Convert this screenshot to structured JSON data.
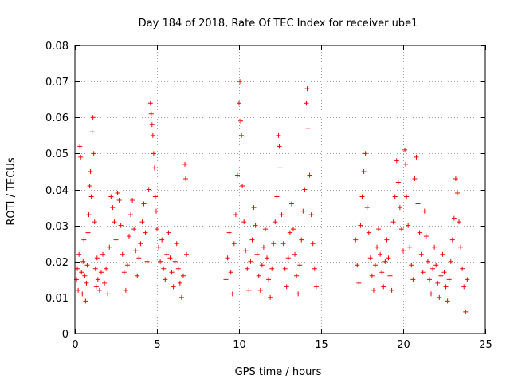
{
  "chart_data": {
    "type": "scatter",
    "title": "Day 184 of 2018, Rate Of TEC Index for receiver ube1",
    "xlabel": "GPS time / hours",
    "ylabel": "ROTI / TECUs",
    "xlim": [
      0,
      25
    ],
    "ylim": [
      0,
      0.08
    ],
    "xticks": [
      0,
      5,
      10,
      15,
      20,
      25
    ],
    "yticks": [
      0,
      0.01,
      0.02,
      0.03,
      0.04,
      0.05,
      0.06,
      0.07,
      0.08
    ],
    "xtick_labels": [
      "0",
      "5",
      "10",
      "15",
      "20",
      "25"
    ],
    "ytick_labels": [
      "0",
      "0.01",
      "0.02",
      "0.03",
      "0.04",
      "0.05",
      "0.06",
      "0.07",
      "0.08"
    ],
    "grid": true,
    "legend": "none",
    "marker": "plus",
    "color": "#ff0000",
    "series": [
      {
        "points": [
          [
            0.1,
            0.015
          ],
          [
            0.15,
            0.018
          ],
          [
            0.2,
            0.012
          ],
          [
            0.25,
            0.022
          ],
          [
            0.3,
            0.052
          ],
          [
            0.35,
            0.049
          ],
          [
            0.4,
            0.017
          ],
          [
            0.45,
            0.011
          ],
          [
            0.5,
            0.02
          ],
          [
            0.55,
            0.026
          ],
          [
            0.6,
            0.016
          ],
          [
            0.65,
            0.009
          ],
          [
            0.7,
            0.014
          ],
          [
            0.75,
            0.019
          ],
          [
            0.8,
            0.028
          ],
          [
            0.85,
            0.033
          ],
          [
            0.9,
            0.041
          ],
          [
            0.95,
            0.045
          ],
          [
            1.0,
            0.038
          ],
          [
            1.05,
            0.056
          ],
          [
            1.1,
            0.06
          ],
          [
            1.15,
            0.05
          ],
          [
            1.2,
            0.031
          ],
          [
            1.25,
            0.018
          ],
          [
            1.3,
            0.013
          ],
          [
            1.35,
            0.021
          ],
          [
            1.4,
            0.015
          ],
          [
            1.5,
            0.012
          ],
          [
            1.6,
            0.017
          ],
          [
            1.7,
            0.022
          ],
          [
            1.8,
            0.014
          ],
          [
            1.9,
            0.018
          ],
          [
            2.0,
            0.011
          ],
          [
            2.1,
            0.024
          ],
          [
            2.2,
            0.038
          ],
          [
            2.3,
            0.035
          ],
          [
            2.4,
            0.031
          ],
          [
            2.5,
            0.026
          ],
          [
            2.6,
            0.039
          ],
          [
            2.7,
            0.037
          ],
          [
            2.8,
            0.03
          ],
          [
            2.9,
            0.022
          ],
          [
            3.0,
            0.017
          ],
          [
            3.1,
            0.012
          ],
          [
            3.2,
            0.019
          ],
          [
            3.3,
            0.027
          ],
          [
            3.4,
            0.033
          ],
          [
            3.5,
            0.037
          ],
          [
            3.6,
            0.029
          ],
          [
            3.7,
            0.023
          ],
          [
            3.8,
            0.016
          ],
          [
            3.9,
            0.021
          ],
          [
            4.0,
            0.025
          ],
          [
            4.1,
            0.031
          ],
          [
            4.2,
            0.036
          ],
          [
            4.3,
            0.028
          ],
          [
            4.4,
            0.02
          ],
          [
            4.5,
            0.04
          ],
          [
            4.6,
            0.064
          ],
          [
            4.65,
            0.061
          ],
          [
            4.7,
            0.058
          ],
          [
            4.75,
            0.055
          ],
          [
            4.8,
            0.05
          ],
          [
            4.85,
            0.046
          ],
          [
            4.9,
            0.038
          ],
          [
            4.95,
            0.034
          ],
          [
            5.0,
            0.029
          ],
          [
            5.1,
            0.024
          ],
          [
            5.2,
            0.02
          ],
          [
            5.3,
            0.026
          ],
          [
            5.4,
            0.018
          ],
          [
            5.5,
            0.015
          ],
          [
            5.6,
            0.022
          ],
          [
            5.7,
            0.028
          ],
          [
            5.8,
            0.021
          ],
          [
            5.9,
            0.017
          ],
          [
            6.0,
            0.013
          ],
          [
            6.1,
            0.02
          ],
          [
            6.2,
            0.025
          ],
          [
            6.3,
            0.018
          ],
          [
            6.4,
            0.014
          ],
          [
            6.5,
            0.01
          ],
          [
            6.6,
            0.016
          ],
          [
            6.7,
            0.047
          ],
          [
            6.75,
            0.043
          ],
          [
            6.8,
            0.022
          ],
          [
            9.2,
            0.015
          ],
          [
            9.3,
            0.021
          ],
          [
            9.4,
            0.028
          ],
          [
            9.5,
            0.017
          ],
          [
            9.6,
            0.011
          ],
          [
            9.7,
            0.025
          ],
          [
            9.8,
            0.033
          ],
          [
            9.9,
            0.044
          ],
          [
            10.0,
            0.064
          ],
          [
            10.05,
            0.07
          ],
          [
            10.1,
            0.059
          ],
          [
            10.15,
            0.055
          ],
          [
            10.2,
            0.041
          ],
          [
            10.3,
            0.031
          ],
          [
            10.4,
            0.023
          ],
          [
            10.5,
            0.018
          ],
          [
            10.6,
            0.012
          ],
          [
            10.7,
            0.02
          ],
          [
            10.8,
            0.026
          ],
          [
            10.9,
            0.035
          ],
          [
            11.0,
            0.03
          ],
          [
            11.1,
            0.022
          ],
          [
            11.2,
            0.016
          ],
          [
            11.3,
            0.012
          ],
          [
            11.4,
            0.019
          ],
          [
            11.5,
            0.024
          ],
          [
            11.6,
            0.029
          ],
          [
            11.7,
            0.021
          ],
          [
            11.8,
            0.015
          ],
          [
            11.9,
            0.01
          ],
          [
            12.0,
            0.018
          ],
          [
            12.1,
            0.025
          ],
          [
            12.2,
            0.031
          ],
          [
            12.3,
            0.038
          ],
          [
            12.4,
            0.055
          ],
          [
            12.45,
            0.052
          ],
          [
            12.5,
            0.046
          ],
          [
            12.6,
            0.033
          ],
          [
            12.7,
            0.025
          ],
          [
            12.8,
            0.018
          ],
          [
            12.9,
            0.013
          ],
          [
            13.0,
            0.021
          ],
          [
            13.1,
            0.028
          ],
          [
            13.2,
            0.036
          ],
          [
            13.3,
            0.029
          ],
          [
            13.4,
            0.022
          ],
          [
            13.5,
            0.016
          ],
          [
            13.6,
            0.011
          ],
          [
            13.7,
            0.019
          ],
          [
            13.8,
            0.026
          ],
          [
            13.9,
            0.034
          ],
          [
            14.0,
            0.04
          ],
          [
            14.1,
            0.064
          ],
          [
            14.15,
            0.068
          ],
          [
            14.2,
            0.057
          ],
          [
            14.3,
            0.044
          ],
          [
            14.4,
            0.033
          ],
          [
            14.5,
            0.025
          ],
          [
            14.6,
            0.018
          ],
          [
            14.7,
            0.013
          ],
          [
            17.1,
            0.026
          ],
          [
            17.2,
            0.019
          ],
          [
            17.3,
            0.014
          ],
          [
            17.4,
            0.03
          ],
          [
            17.5,
            0.038
          ],
          [
            17.6,
            0.045
          ],
          [
            17.7,
            0.05
          ],
          [
            17.8,
            0.035
          ],
          [
            17.9,
            0.028
          ],
          [
            18.0,
            0.021
          ],
          [
            18.1,
            0.016
          ],
          [
            18.2,
            0.012
          ],
          [
            18.3,
            0.019
          ],
          [
            18.4,
            0.024
          ],
          [
            18.5,
            0.029
          ],
          [
            18.6,
            0.022
          ],
          [
            18.7,
            0.017
          ],
          [
            18.8,
            0.013
          ],
          [
            18.9,
            0.02
          ],
          [
            19.0,
            0.026
          ],
          [
            19.1,
            0.021
          ],
          [
            19.2,
            0.016
          ],
          [
            19.3,
            0.012
          ],
          [
            19.4,
            0.031
          ],
          [
            19.5,
            0.038
          ],
          [
            19.6,
            0.048
          ],
          [
            19.7,
            0.042
          ],
          [
            19.8,
            0.035
          ],
          [
            19.9,
            0.029
          ],
          [
            20.0,
            0.023
          ],
          [
            20.1,
            0.051
          ],
          [
            20.15,
            0.047
          ],
          [
            20.2,
            0.038
          ],
          [
            20.3,
            0.03
          ],
          [
            20.4,
            0.024
          ],
          [
            20.5,
            0.019
          ],
          [
            20.6,
            0.015
          ],
          [
            20.7,
            0.043
          ],
          [
            20.8,
            0.049
          ],
          [
            20.9,
            0.036
          ],
          [
            21.0,
            0.028
          ],
          [
            21.1,
            0.022
          ],
          [
            21.2,
            0.017
          ],
          [
            21.3,
            0.034
          ],
          [
            21.4,
            0.027
          ],
          [
            21.5,
            0.02
          ],
          [
            21.6,
            0.015
          ],
          [
            21.7,
            0.011
          ],
          [
            21.8,
            0.018
          ],
          [
            21.9,
            0.024
          ],
          [
            22.0,
            0.019
          ],
          [
            22.1,
            0.014
          ],
          [
            22.2,
            0.01
          ],
          [
            22.3,
            0.016
          ],
          [
            22.4,
            0.022
          ],
          [
            22.5,
            0.017
          ],
          [
            22.6,
            0.013
          ],
          [
            22.7,
            0.009
          ],
          [
            22.8,
            0.015
          ],
          [
            22.9,
            0.02
          ],
          [
            23.0,
            0.026
          ],
          [
            23.1,
            0.032
          ],
          [
            23.2,
            0.043
          ],
          [
            23.3,
            0.039
          ],
          [
            23.4,
            0.031
          ],
          [
            23.5,
            0.024
          ],
          [
            23.6,
            0.018
          ],
          [
            23.7,
            0.013
          ],
          [
            23.8,
            0.006
          ],
          [
            23.9,
            0.015
          ]
        ]
      }
    ]
  }
}
